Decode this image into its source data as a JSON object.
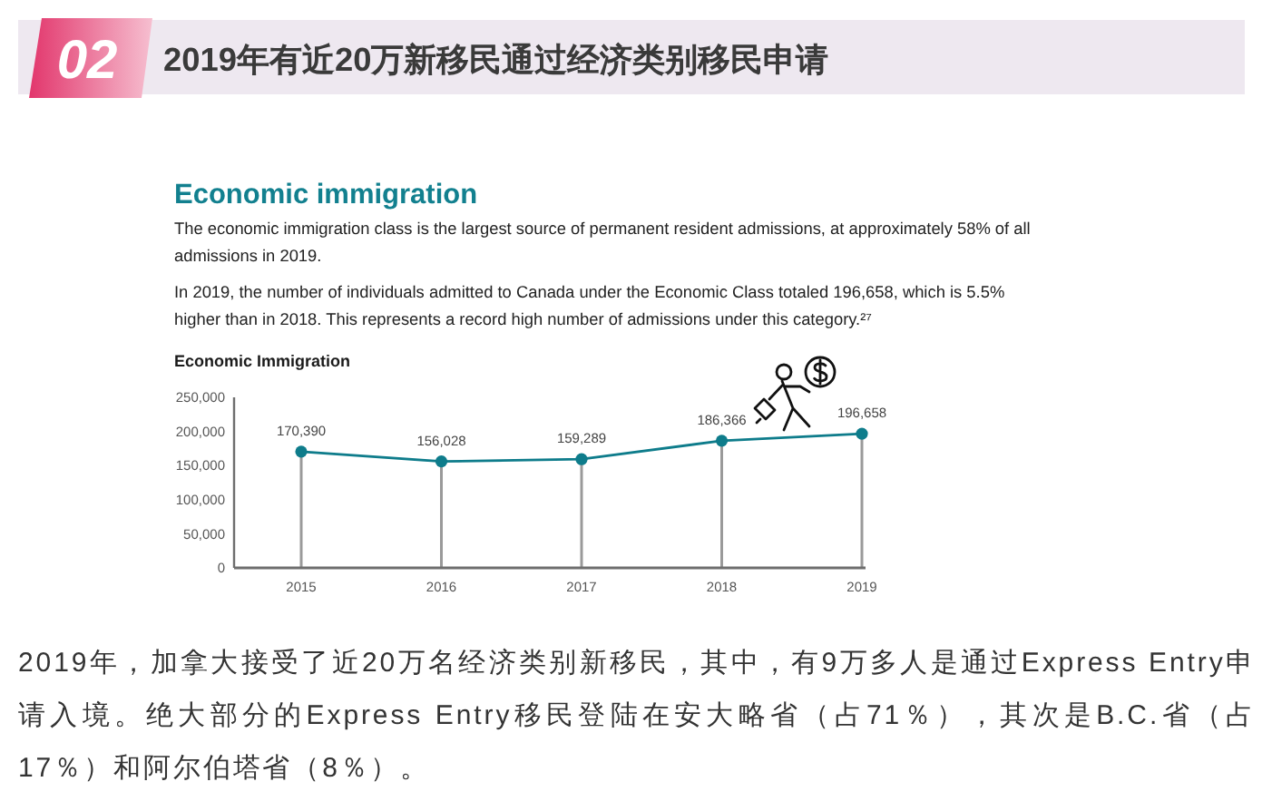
{
  "chart_data": {
    "type": "line",
    "title": "Economic Immigration",
    "categories": [
      "2015",
      "2016",
      "2017",
      "2018",
      "2019"
    ],
    "series": [
      {
        "color": "#0e7c8b",
        "values": [
          170390,
          156028,
          159289,
          186366,
          196658
        ],
        "value_labels": [
          "170,390",
          "156,028",
          "159,289",
          "186,366",
          "196,658"
        ]
      }
    ],
    "ylim": [
      0,
      250000
    ],
    "yticks": [
      0,
      {
        "value": 50000,
        "label": "50,000"
      },
      {
        "value": 100000,
        "label": "100,000"
      },
      {
        "value": 150000,
        "label": "150,000"
      },
      {
        "value": 200000,
        "label": "200,000"
      },
      {
        "value": 250000,
        "label": "250,000"
      }
    ],
    "marker": "circle",
    "grid": "x",
    "annotations": [
      "02",
      "2019年有近20万新移民通过经济类别移民申请",
      "Economic immigration",
      "The economic immigration class is the largest source of permanent resident admissions, at approximately 58% of all admissions in 2019.",
      "In 2019, the number of individuals admitted to Canada under the Economic Class totaled 196,658, which is 5.5% higher than in 2018. This represents a record high number of admissions under this category.²⁷",
      "2019年，加拿大接受了近20万名经济类别新移民，其中，有9万多人是通过Express Entry申请入境。绝大部分的Express Entry移民登陆在安大略省（占71％），其次是B.C.省（占17％）和阿尔伯塔省（8％）。"
    ]
  }
}
